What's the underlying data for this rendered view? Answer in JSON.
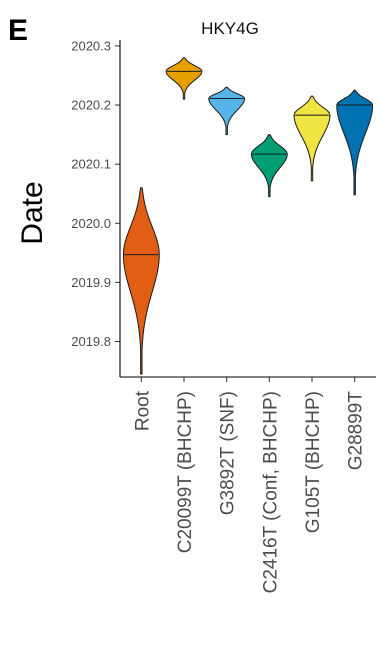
{
  "panel_label": "E",
  "chart_data": {
    "type": "violin",
    "title": "HKY4G",
    "xlabel": "",
    "ylabel": "Date",
    "ylim": [
      2019.74,
      2020.31
    ],
    "yticks": [
      "2019.8",
      "2019.9",
      "2020.0",
      "2020.1",
      "2020.2",
      "2020.3"
    ],
    "grid": false,
    "legend": "none",
    "categories": [
      "Root",
      "C20099T (BHCHP)",
      "G3892T (SNF)",
      "C2416T (Conf, BHCHP)",
      "G105T (BHCHP)",
      "G28899T"
    ],
    "series": [
      {
        "category": "Root",
        "median": 2019.947,
        "min": 2019.745,
        "max": 2020.06,
        "color": "#e25e14"
      },
      {
        "category": "C20099T (BHCHP)",
        "median": 2020.257,
        "min": 2020.21,
        "max": 2020.28,
        "color": "#e69f00"
      },
      {
        "category": "G3892T (SNF)",
        "median": 2020.211,
        "min": 2020.15,
        "max": 2020.23,
        "color": "#56b4e9"
      },
      {
        "category": "C2416T (Conf, BHCHP)",
        "median": 2020.117,
        "min": 2020.045,
        "max": 2020.15,
        "color": "#009e73"
      },
      {
        "category": "G105T (BHCHP)",
        "median": 2020.183,
        "min": 2020.072,
        "max": 2020.215,
        "color": "#f0e442"
      },
      {
        "category": "G28899T",
        "median": 2020.2,
        "min": 2020.048,
        "max": 2020.225,
        "color": "#0072b2"
      }
    ]
  }
}
